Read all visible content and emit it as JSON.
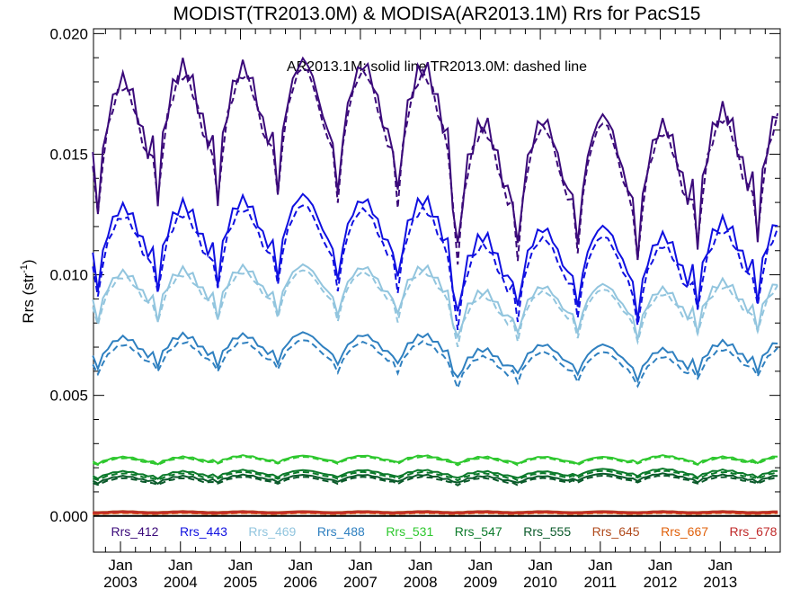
{
  "chart_data": {
    "type": "line",
    "title": "MODIST(TR2013.0M) & MODISA(AR2013.1M)  Rrs for PacS15",
    "annotation": "AR2013.1M: solid line   TR2013.0M: dashed line",
    "ylabel_main": "Rrs (str",
    "ylabel_sup": "-1",
    "ylabel_close": ")",
    "ylim": [
      -0.0015,
      0.0202
    ],
    "xlim": [
      2002.55,
      2014.0
    ],
    "yticks": [
      0.0,
      0.005,
      0.01,
      0.015,
      0.02
    ],
    "ytick_labels": [
      "0.000",
      "0.005",
      "0.010",
      "0.015",
      "0.020"
    ],
    "xticks": [
      {
        "x": 2003.0,
        "month": "Jan",
        "year": "2003"
      },
      {
        "x": 2004.0,
        "month": "Jan",
        "year": "2004"
      },
      {
        "x": 2005.0,
        "month": "Jan",
        "year": "2005"
      },
      {
        "x": 2006.0,
        "month": "Jan",
        "year": "2006"
      },
      {
        "x": 2007.0,
        "month": "Jan",
        "year": "2007"
      },
      {
        "x": 2008.0,
        "month": "Jan",
        "year": "2008"
      },
      {
        "x": 2009.0,
        "month": "Jan",
        "year": "2009"
      },
      {
        "x": 2010.0,
        "month": "Jan",
        "year": "2010"
      },
      {
        "x": 2011.0,
        "month": "Jan",
        "year": "2011"
      },
      {
        "x": 2012.0,
        "month": "Jan",
        "year": "2012"
      },
      {
        "x": 2013.0,
        "month": "Jan",
        "year": "2013"
      }
    ],
    "zero_line": 0.0,
    "legend_position": "bottom",
    "series": [
      {
        "name": "Rrs_412",
        "color": "#3b0a7a",
        "base": 0.0165,
        "amp": 0.0016,
        "trend": -0.0001,
        "offset": -0.0003,
        "dip": 0.0024,
        "yearly": [
          0.0,
          0.0005,
          0.0005,
          0.0008,
          0.0006,
          0.0005,
          -0.0018,
          -0.0017,
          -0.0015,
          -0.0019,
          -0.0013,
          -0.001
        ]
      },
      {
        "name": "Rrs_443",
        "color": "#1010e0",
        "base": 0.0118,
        "amp": 0.001,
        "trend": 0.0,
        "offset": -0.0004,
        "dip": 0.0015,
        "yearly": [
          0.0,
          0.0001,
          0.0003,
          0.0005,
          0.0003,
          0.0003,
          -0.0012,
          -0.0009,
          -0.0008,
          -0.0012,
          -0.0006,
          -0.0004
        ]
      },
      {
        "name": "Rrs_469",
        "color": "#92c5de",
        "base": 0.0095,
        "amp": 0.0006,
        "trend": 0.0,
        "offset": -0.0002,
        "dip": 0.0009,
        "yearly": [
          0.0,
          0.0001,
          0.0002,
          0.0003,
          0.0002,
          0.0002,
          -0.0008,
          -0.0006,
          -0.0005,
          -0.0007,
          -0.0004,
          -0.0003
        ]
      },
      {
        "name": "Rrs_488",
        "color": "#2f80c0",
        "base": 0.007,
        "amp": 0.0004,
        "trend": 0.0,
        "offset": -0.0003,
        "dip": 0.0005,
        "yearly": [
          0.0,
          0.0001,
          0.0001,
          0.0002,
          0.0001,
          0.0001,
          -0.0005,
          -0.0003,
          -0.0003,
          -0.0005,
          -0.0002,
          -0.0001
        ]
      },
      {
        "name": "Rrs_531",
        "color": "#2ec82e",
        "base": 0.00235,
        "amp": 0.0001,
        "trend": 0.0,
        "offset": -5e-05,
        "dip": 0.0001,
        "yearly": [
          0.0,
          0.0,
          5e-05,
          5e-05,
          5e-05,
          5e-05,
          0.0,
          0.0,
          0.0,
          5e-05,
          0.0,
          5e-05
        ]
      },
      {
        "name": "Rrs_547",
        "color": "#0b7a2a",
        "base": 0.00175,
        "amp": 0.0001,
        "trend": 0.0,
        "offset": -8e-05,
        "dip": 0.0001,
        "yearly": [
          0.0,
          0.0,
          5e-05,
          5e-05,
          5e-05,
          5e-05,
          0.0,
          0.0,
          0.0001,
          0.0001,
          5e-05,
          5e-05
        ]
      },
      {
        "name": "Rrs_555",
        "color": "#0a5a2a",
        "base": 0.00155,
        "amp": 0.0001,
        "trend": 0.0,
        "offset": -8e-05,
        "dip": 0.0001,
        "yearly": [
          0.0,
          0.0,
          5e-05,
          5e-05,
          5e-05,
          5e-05,
          0.0,
          0.0,
          0.0001,
          0.0001,
          5e-05,
          5e-05
        ]
      },
      {
        "name": "Rrs_645",
        "color": "#b04a1c",
        "base": 0.00018,
        "amp": 2e-05,
        "trend": 0.0,
        "offset": -3e-05,
        "dip": 0.0,
        "yearly": [
          0,
          0,
          0,
          0,
          0,
          0,
          0,
          0,
          0,
          0,
          0,
          0
        ]
      },
      {
        "name": "Rrs_667",
        "color": "#e0600a",
        "base": 0.00012,
        "amp": 2e-05,
        "trend": 0.0,
        "offset": -2e-05,
        "dip": 0.0,
        "yearly": [
          0,
          0,
          0,
          0,
          0,
          0,
          0,
          0,
          0,
          0,
          0,
          0
        ]
      },
      {
        "name": "Rrs_678",
        "color": "#c02a2a",
        "base": 0.00015,
        "amp": 2e-05,
        "trend": 0.0,
        "offset": -2e-05,
        "dip": 0.0,
        "yearly": [
          0,
          0,
          0,
          0,
          0,
          0,
          0,
          0,
          0,
          0,
          0,
          0
        ]
      }
    ]
  }
}
